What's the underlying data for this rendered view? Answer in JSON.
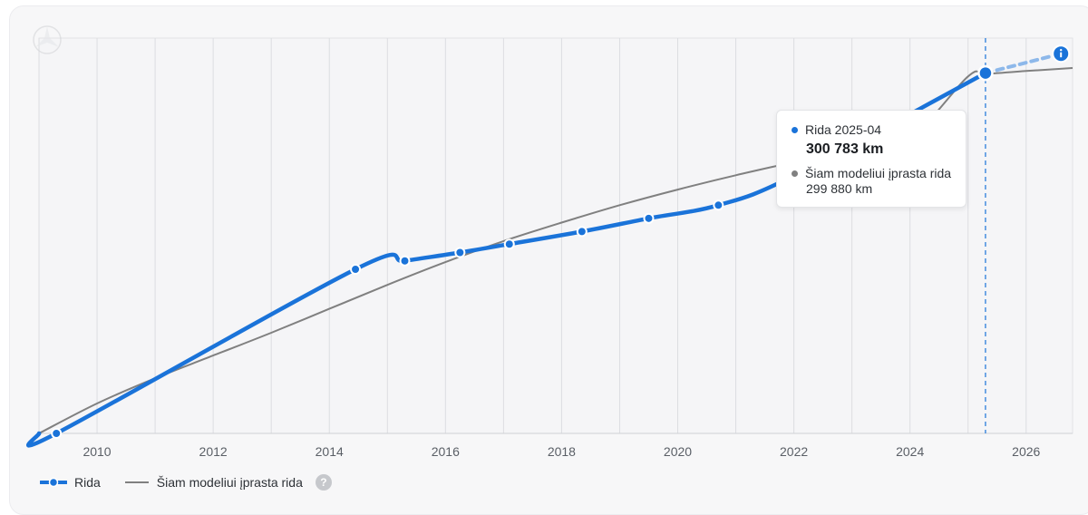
{
  "chart_data": {
    "type": "line",
    "x_ticks": [
      2010,
      2012,
      2014,
      2016,
      2018,
      2020,
      2022,
      2024,
      2026
    ],
    "xlim": [
      2009.0,
      2026.8
    ],
    "ylim": [
      0,
      330000
    ],
    "grid": "vertical",
    "legend_position": "bottom-left",
    "series": [
      {
        "name": "Rida",
        "color": "#1a73d9",
        "x": [
          2009.3,
          2014.45,
          2015.3,
          2016.25,
          2017.1,
          2018.35,
          2019.5,
          2020.7,
          2022.0,
          2025.3
        ],
        "y": [
          0,
          137000,
          144000,
          151000,
          158000,
          168500,
          179500,
          190500,
          215000,
          300783
        ],
        "projection": {
          "x": [
            2025.3,
            2026.6
          ],
          "y": [
            300783,
            317000
          ]
        }
      },
      {
        "name": "Šiam modeliui įprasta rida",
        "color": "#808080",
        "x": [
          2009.0,
          2010.0,
          2011.0,
          2012.0,
          2013.0,
          2014.0,
          2015.0,
          2016.0,
          2017.0,
          2018.0,
          2019.0,
          2020.0,
          2021.0,
          2022.0,
          2023.0,
          2024.0,
          2025.0,
          2025.3,
          2026.0,
          2026.8
        ],
        "y": [
          0,
          25000,
          46000,
          65000,
          84000,
          104000,
          124000,
          143000,
          160500,
          176000,
          190500,
          203500,
          215500,
          226500,
          237500,
          247000,
          298000,
          299880,
          302500,
          305000
        ]
      }
    ],
    "highlight": {
      "x": 2025.3
    }
  },
  "tooltip": {
    "title": "Rida 2025-04",
    "value": "300 783 km",
    "typical_label": "Šiam modeliui įprasta rida",
    "typical_value": "299 880 km",
    "colors": {
      "rida": "#1a73d9",
      "typical": "#808080"
    }
  },
  "legend": {
    "rida": "Rida",
    "typical": "Šiam modeliui įprasta rida",
    "help": "?"
  },
  "icons": {
    "end_marker": "info-icon",
    "corner": "logo-icon"
  }
}
